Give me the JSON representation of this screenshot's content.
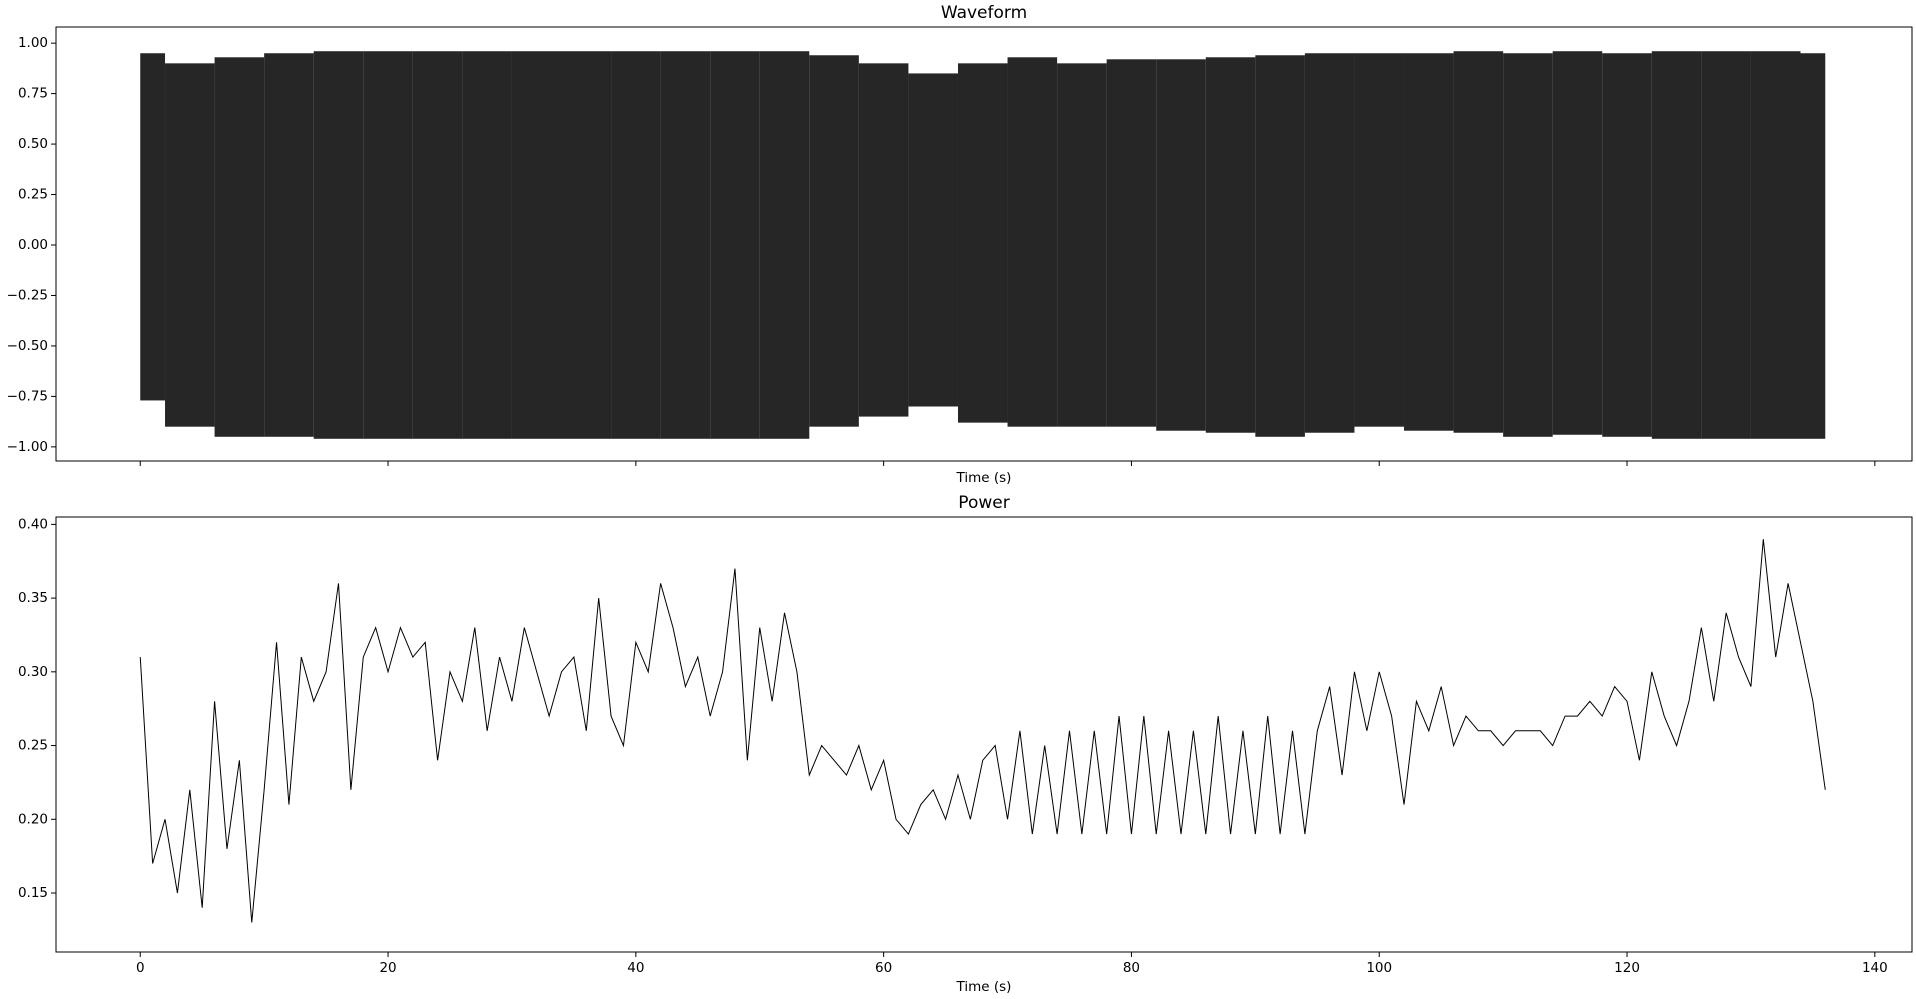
{
  "chart_data": [
    {
      "type": "band",
      "title": "Waveform",
      "xlabel": "Time (s)",
      "color": "#000000",
      "x": [
        0,
        4,
        8,
        12,
        16,
        20,
        24,
        28,
        32,
        36,
        40,
        44,
        48,
        52,
        56,
        60,
        64,
        68,
        72,
        76,
        80,
        84,
        88,
        92,
        96,
        100,
        104,
        108,
        112,
        116,
        120,
        124,
        128,
        132,
        136
      ],
      "max": [
        0.95,
        0.9,
        0.93,
        0.95,
        0.96,
        0.96,
        0.96,
        0.96,
        0.96,
        0.96,
        0.96,
        0.96,
        0.96,
        0.96,
        0.94,
        0.9,
        0.85,
        0.9,
        0.93,
        0.9,
        0.92,
        0.92,
        0.93,
        0.94,
        0.95,
        0.95,
        0.95,
        0.96,
        0.95,
        0.96,
        0.95,
        0.96,
        0.96,
        0.96,
        0.95
      ],
      "min": [
        -0.77,
        -0.9,
        -0.95,
        -0.95,
        -0.96,
        -0.96,
        -0.96,
        -0.96,
        -0.96,
        -0.96,
        -0.96,
        -0.96,
        -0.96,
        -0.96,
        -0.9,
        -0.85,
        -0.8,
        -0.88,
        -0.9,
        -0.9,
        -0.9,
        -0.92,
        -0.93,
        -0.95,
        -0.93,
        -0.9,
        -0.92,
        -0.93,
        -0.95,
        -0.94,
        -0.95,
        -0.96,
        -0.96,
        -0.96,
        -0.96
      ],
      "xlim": [
        -6.8,
        143
      ],
      "ylim": [
        -1.07,
        1.08
      ],
      "xticks": [
        0,
        20,
        40,
        60,
        80,
        100,
        120,
        140
      ],
      "xtick_labels": false,
      "yticks": [
        {
          "value": -1,
          "label": "−1.00"
        },
        {
          "value": -0.75,
          "label": "−0.75"
        },
        {
          "value": -0.5,
          "label": "−0.50"
        },
        {
          "value": -0.25,
          "label": "−0.25"
        },
        {
          "value": 0,
          "label": "0.00"
        },
        {
          "value": 0.25,
          "label": "0.25"
        },
        {
          "value": 0.5,
          "label": "0.50"
        },
        {
          "value": 0.75,
          "label": "0.75"
        },
        {
          "value": 1,
          "label": "1.00"
        }
      ]
    },
    {
      "type": "line",
      "title": "Power",
      "xlabel": "Time (s)",
      "color": "#000000",
      "x": [
        0,
        1,
        2,
        3,
        4,
        5,
        6,
        7,
        8,
        9,
        10,
        11,
        12,
        13,
        14,
        15,
        16,
        17,
        18,
        19,
        20,
        21,
        22,
        23,
        24,
        25,
        26,
        27,
        28,
        29,
        30,
        31,
        32,
        33,
        34,
        35,
        36,
        37,
        38,
        39,
        40,
        41,
        42,
        43,
        44,
        45,
        46,
        47,
        48,
        49,
        50,
        51,
        52,
        53,
        54,
        55,
        56,
        57,
        58,
        59,
        60,
        61,
        62,
        63,
        64,
        65,
        66,
        67,
        68,
        69,
        70,
        71,
        72,
        73,
        74,
        75,
        76,
        77,
        78,
        79,
        80,
        81,
        82,
        83,
        84,
        85,
        86,
        87,
        88,
        89,
        90,
        91,
        92,
        93,
        94,
        95,
        96,
        97,
        98,
        99,
        100,
        101,
        102,
        103,
        104,
        105,
        106,
        107,
        108,
        109,
        110,
        111,
        112,
        113,
        114,
        115,
        116,
        117,
        118,
        119,
        120,
        121,
        122,
        123,
        124,
        125,
        126,
        127,
        128,
        129,
        130,
        131,
        132,
        133,
        134,
        135,
        136
      ],
      "values": [
        0.31,
        0.17,
        0.2,
        0.15,
        0.22,
        0.14,
        0.28,
        0.18,
        0.24,
        0.13,
        0.22,
        0.32,
        0.21,
        0.31,
        0.28,
        0.3,
        0.36,
        0.22,
        0.31,
        0.33,
        0.3,
        0.33,
        0.31,
        0.32,
        0.24,
        0.3,
        0.28,
        0.33,
        0.26,
        0.31,
        0.28,
        0.33,
        0.3,
        0.27,
        0.3,
        0.31,
        0.26,
        0.35,
        0.27,
        0.25,
        0.32,
        0.3,
        0.36,
        0.33,
        0.29,
        0.31,
        0.27,
        0.3,
        0.37,
        0.24,
        0.33,
        0.28,
        0.34,
        0.3,
        0.23,
        0.25,
        0.24,
        0.23,
        0.25,
        0.22,
        0.24,
        0.2,
        0.19,
        0.21,
        0.22,
        0.2,
        0.23,
        0.2,
        0.24,
        0.25,
        0.2,
        0.26,
        0.19,
        0.25,
        0.19,
        0.26,
        0.19,
        0.26,
        0.19,
        0.27,
        0.19,
        0.27,
        0.19,
        0.26,
        0.19,
        0.26,
        0.19,
        0.27,
        0.19,
        0.26,
        0.19,
        0.27,
        0.19,
        0.26,
        0.19,
        0.26,
        0.29,
        0.23,
        0.3,
        0.26,
        0.3,
        0.27,
        0.21,
        0.28,
        0.26,
        0.29,
        0.25,
        0.27,
        0.26,
        0.26,
        0.25,
        0.26,
        0.26,
        0.26,
        0.25,
        0.27,
        0.27,
        0.28,
        0.27,
        0.29,
        0.28,
        0.24,
        0.3,
        0.27,
        0.25,
        0.28,
        0.33,
        0.28,
        0.34,
        0.31,
        0.29,
        0.39,
        0.31,
        0.36,
        0.32,
        0.28,
        0.22
      ],
      "xlim": [
        -6.8,
        143
      ],
      "ylim": [
        0.11,
        0.405
      ],
      "xticks": [
        0,
        20,
        40,
        60,
        80,
        100,
        120,
        140
      ],
      "xtick_labels": true,
      "yticks": [
        0.15,
        {
          "value": 0.2,
          "label": "0.20"
        },
        0.25,
        {
          "value": 0.3,
          "label": "0.30"
        },
        0.35,
        {
          "value": 0.4,
          "label": "0.40"
        }
      ]
    }
  ]
}
